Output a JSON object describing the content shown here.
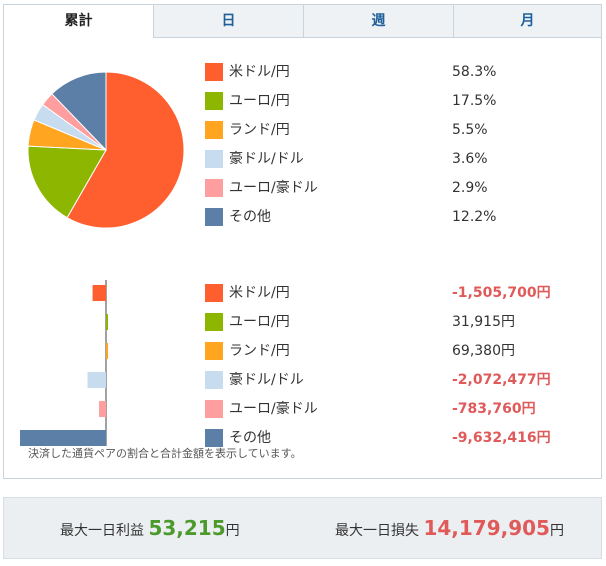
{
  "tabs": [
    "累計",
    "日",
    "週",
    "月"
  ],
  "active_tab": 0,
  "pie": {
    "items": [
      {
        "label": "米ドル/円",
        "value": "58.3%",
        "percent": 58.3,
        "color": "#ff5f2e"
      },
      {
        "label": "ユーロ/円",
        "value": "17.5%",
        "percent": 17.5,
        "color": "#8db600"
      },
      {
        "label": "ランド/円",
        "value": "5.5%",
        "percent": 5.5,
        "color": "#ffa520"
      },
      {
        "label": "豪ドル/ドル",
        "value": "3.6%",
        "percent": 3.6,
        "color": "#c7dcef"
      },
      {
        "label": "ユーロ/豪ドル",
        "value": "2.9%",
        "percent": 2.9,
        "color": "#ff9e9e"
      },
      {
        "label": "その他",
        "value": "12.2%",
        "percent": 12.2,
        "color": "#5b7fa6"
      }
    ]
  },
  "bars": {
    "items": [
      {
        "label": "米ドル/円",
        "value": "-1,505,700円",
        "amount": -1505700,
        "negative": true,
        "color": "#ff5f2e"
      },
      {
        "label": "ユーロ/円",
        "value": "31,915円",
        "amount": 31915,
        "negative": false,
        "color": "#8db600"
      },
      {
        "label": "ランド/円",
        "value": "69,380円",
        "amount": 69380,
        "negative": false,
        "color": "#ffa520"
      },
      {
        "label": "豪ドル/ドル",
        "value": "-2,072,477円",
        "amount": -2072477,
        "negative": true,
        "color": "#c7dcef"
      },
      {
        "label": "ユーロ/豪ドル",
        "value": "-783,760円",
        "amount": -783760,
        "negative": true,
        "color": "#ff9e9e"
      },
      {
        "label": "その他",
        "value": "-9,632,416円",
        "amount": -9632416,
        "negative": true,
        "color": "#5b7fa6"
      }
    ]
  },
  "note": "決済した通貨ペアの割合と合計金額を表示しています。",
  "summary": {
    "profit_label": "最大一日利益",
    "profit_value": "53,215",
    "profit_unit": "円",
    "loss_label": "最大一日損失",
    "loss_value": "14,179,905",
    "loss_unit": "円"
  }
}
